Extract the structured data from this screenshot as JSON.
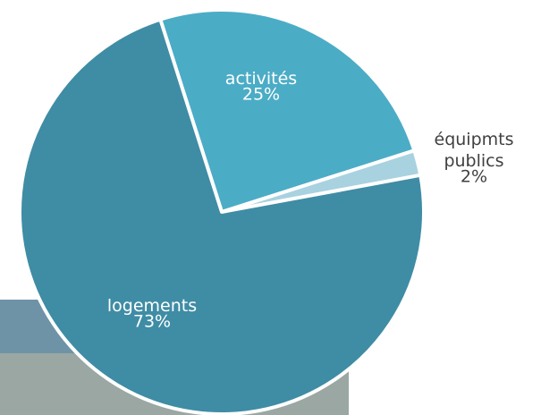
{
  "chart_data": {
    "type": "pie",
    "categories": [
      "activités",
      "équipmts publics",
      "logements"
    ],
    "values": [
      25,
      2,
      73
    ],
    "value_labels": [
      "25%",
      "2%",
      "73%"
    ],
    "colors": [
      "#4bacc6",
      "#a8d2df",
      "#3f8ca5"
    ]
  }
}
